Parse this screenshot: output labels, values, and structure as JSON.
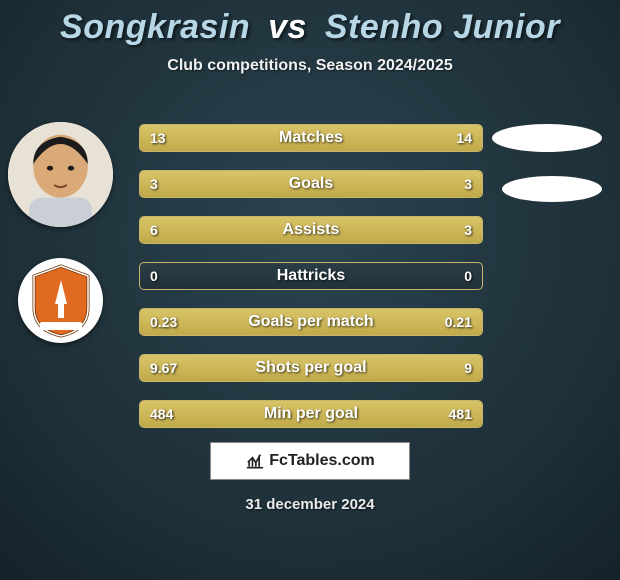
{
  "title": {
    "player1": "Songkrasin",
    "vs": "vs",
    "player2": "Stenho Junior"
  },
  "subtitle": "Club competitions, Season 2024/2025",
  "date": "31 december 2024",
  "logo_text": "FcTables.com",
  "colors": {
    "bar_fill": "#d0bb58",
    "bar_border": "#d6c46d",
    "bg_inner": "#2b4450",
    "bg_outer": "#14222a",
    "title_color": "#b7d6e6"
  },
  "rows": [
    {
      "label": "Matches",
      "left": "13",
      "right": "14",
      "fill_left_pct": 48,
      "fill_right_pct": 52
    },
    {
      "label": "Goals",
      "left": "3",
      "right": "3",
      "fill_left_pct": 50,
      "fill_right_pct": 50
    },
    {
      "label": "Assists",
      "left": "6",
      "right": "3",
      "fill_left_pct": 67,
      "fill_right_pct": 33
    },
    {
      "label": "Hattricks",
      "left": "0",
      "right": "0",
      "fill_left_pct": 0,
      "fill_right_pct": 0
    },
    {
      "label": "Goals per match",
      "left": "0.23",
      "right": "0.21",
      "fill_left_pct": 52,
      "fill_right_pct": 48
    },
    {
      "label": "Shots per goal",
      "left": "9.67",
      "right": "9",
      "fill_left_pct": 52,
      "fill_right_pct": 48
    },
    {
      "label": "Min per goal",
      "left": "484",
      "right": "481",
      "fill_left_pct": 50,
      "fill_right_pct": 50
    }
  ]
}
